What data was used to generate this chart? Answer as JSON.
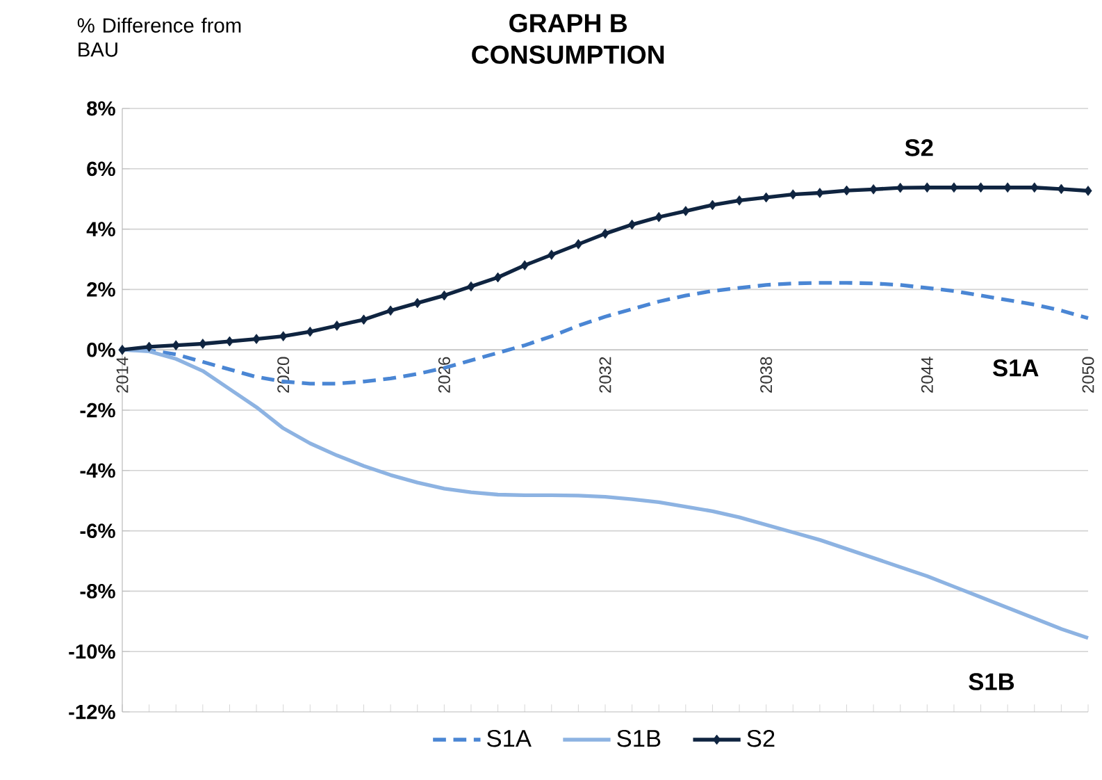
{
  "chart_data": {
    "type": "line",
    "title": "GRAPH B",
    "subtitle": "CONSUMPTION",
    "ylabel": "% Difference from BAU",
    "x": [
      2014,
      2015,
      2016,
      2017,
      2018,
      2019,
      2020,
      2021,
      2022,
      2023,
      2024,
      2025,
      2026,
      2027,
      2028,
      2029,
      2030,
      2031,
      2032,
      2033,
      2034,
      2035,
      2036,
      2037,
      2038,
      2039,
      2040,
      2041,
      2042,
      2043,
      2044,
      2045,
      2046,
      2047,
      2048,
      2049,
      2050
    ],
    "series": [
      {
        "name": "S1A",
        "color": "#4a86d4",
        "line_style": "dashed",
        "marker": "none",
        "values": [
          0,
          -0.02,
          -0.15,
          -0.4,
          -0.65,
          -0.9,
          -1.05,
          -1.12,
          -1.12,
          -1.05,
          -0.95,
          -0.8,
          -0.6,
          -0.35,
          -0.1,
          0.15,
          0.45,
          0.8,
          1.1,
          1.35,
          1.6,
          1.8,
          1.95,
          2.05,
          2.15,
          2.2,
          2.22,
          2.22,
          2.2,
          2.15,
          2.05,
          1.95,
          1.8,
          1.65,
          1.5,
          1.3,
          1.05
        ]
      },
      {
        "name": "S1B",
        "color": "#8db3e2",
        "line_style": "solid",
        "marker": "none",
        "values": [
          0,
          -0.05,
          -0.3,
          -0.7,
          -1.3,
          -1.9,
          -2.6,
          -3.1,
          -3.5,
          -3.85,
          -4.15,
          -4.4,
          -4.6,
          -4.72,
          -4.8,
          -4.82,
          -4.82,
          -4.83,
          -4.87,
          -4.95,
          -5.05,
          -5.2,
          -5.35,
          -5.55,
          -5.8,
          -6.05,
          -6.3,
          -6.6,
          -6.9,
          -7.2,
          -7.5,
          -7.85,
          -8.2,
          -8.55,
          -8.9,
          -9.25,
          -9.55
        ]
      },
      {
        "name": "S2",
        "color": "#0f2440",
        "line_style": "solid",
        "marker": "diamond",
        "values": [
          0,
          0.1,
          0.15,
          0.2,
          0.28,
          0.36,
          0.45,
          0.6,
          0.8,
          1.0,
          1.3,
          1.55,
          1.8,
          2.1,
          2.4,
          2.8,
          3.15,
          3.5,
          3.85,
          4.15,
          4.4,
          4.6,
          4.8,
          4.95,
          5.05,
          5.15,
          5.2,
          5.28,
          5.32,
          5.37,
          5.38,
          5.38,
          5.38,
          5.38,
          5.38,
          5.33,
          5.27
        ]
      }
    ],
    "xlim": [
      2014,
      2050
    ],
    "xticks": [
      2014,
      2020,
      2026,
      2032,
      2038,
      2044,
      2050
    ],
    "ylim": [
      -12,
      8
    ],
    "yticks": [
      {
        "value": -12,
        "label": "-12%"
      },
      {
        "value": -10,
        "label": "-10%"
      },
      {
        "value": -8,
        "label": "-8%"
      },
      {
        "value": -6,
        "label": "-6%"
      },
      {
        "value": -4,
        "label": "-4%"
      },
      {
        "value": -2,
        "label": "-2%"
      },
      {
        "value": 0,
        "label": "0%"
      },
      {
        "value": 2,
        "label": "2%"
      },
      {
        "value": 4,
        "label": "4%"
      },
      {
        "value": 6,
        "label": "6%"
      },
      {
        "value": 8,
        "label": "8%"
      }
    ],
    "grid": "y",
    "legend": "bottom",
    "annotations": [
      "S2",
      "S1A",
      "S1B"
    ]
  }
}
